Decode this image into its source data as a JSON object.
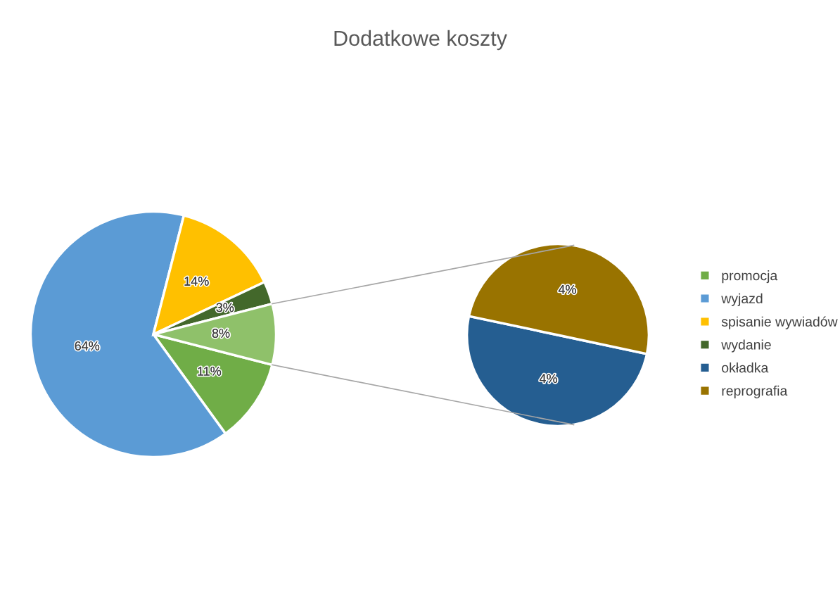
{
  "chart_data": [
    {
      "type": "pie",
      "title": "Dodatkowe koszty",
      "categories": [
        "promocja",
        "wyjazd",
        "spisanie wywiadów",
        "wydanie",
        null
      ],
      "values": [
        11,
        64,
        14,
        3,
        8
      ],
      "colors": [
        "#70ad47",
        "#5b9bd5",
        "#ffc000",
        "#43682b",
        "#8fc16a"
      ],
      "value_labels": [
        "11%",
        "64%",
        "14%",
        "3%",
        "8%"
      ],
      "legend": "right"
    },
    {
      "type": "pie",
      "categories": [
        "okładka",
        "reprografia"
      ],
      "values": [
        4,
        4
      ],
      "colors": [
        "#255e91",
        "#997300"
      ],
      "value_labels": [
        "4%",
        "4%"
      ],
      "legend": "right"
    }
  ]
}
